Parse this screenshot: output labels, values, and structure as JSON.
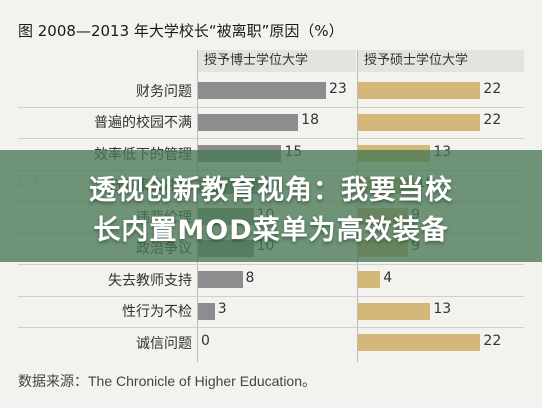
{
  "chart_data": {
    "type": "bar",
    "title": "图  2008—2013 年大学校长“被离职”原因（%）",
    "categories": [
      "财务问题",
      "普遍的校园不满",
      "效率低下的管理",
      "与董事会冲突",
      "违背伦理",
      "政治争议",
      "失去教师支持",
      "性行为不检",
      "诚信问题"
    ],
    "series": [
      {
        "name": "授予博士学位大学",
        "values": [
          23,
          18,
          15,
          11,
          10,
          10,
          8,
          3,
          0
        ],
        "color": "#8c8d8f"
      },
      {
        "name": "授予硕士学位大学",
        "values": [
          22,
          22,
          13,
          10,
          9,
          9,
          4,
          13,
          22
        ],
        "color": "#d4b879"
      }
    ],
    "xlim": [
      0,
      25
    ]
  },
  "source": {
    "label": "数据来源：",
    "text": "The Chronicle of Higher Education。"
  },
  "overlay": {
    "line1": "透视创新教育视角：我要当校",
    "line2": "长内置MOD菜单为高效装备",
    "side_tag": "与大"
  }
}
